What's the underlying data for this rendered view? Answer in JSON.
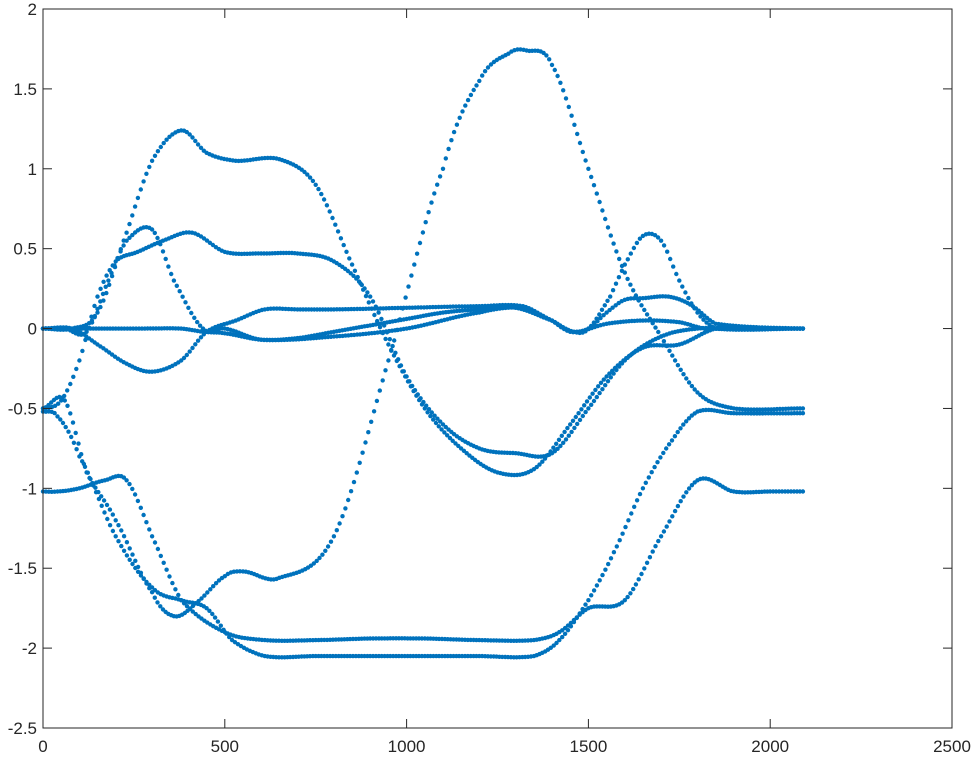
{
  "chart_data": {
    "type": "scatter",
    "title": "",
    "xlabel": "",
    "ylabel": "",
    "xlim": [
      0,
      2500
    ],
    "ylim": [
      -2.5,
      2
    ],
    "xticks": [
      0,
      500,
      1000,
      1500,
      2000,
      2500
    ],
    "yticks": [
      -2.5,
      -2,
      -1.5,
      -1,
      -0.5,
      0,
      0.5,
      1,
      1.5,
      2
    ],
    "xtick_labels": [
      "0",
      "500",
      "1000",
      "1500",
      "2000",
      "2500"
    ],
    "ytick_labels": [
      "-2.5",
      "-2",
      "-1.5",
      "-1",
      "-0.5",
      "0",
      "0.5",
      "1",
      "1.5",
      "2"
    ],
    "grid": false,
    "marker_color": "#0072BD",
    "series": [
      {
        "x": [
          0,
          80,
          150,
          230,
          300,
          380,
          450,
          530,
          650,
          750,
          850,
          950,
          1050,
          1150,
          1250,
          1350,
          1450,
          1550,
          1650,
          1750,
          1850,
          1950,
          2090
        ],
        "y": [
          0,
          0,
          0.1,
          0.6,
          1.05,
          1.24,
          1.1,
          1.05,
          1.06,
          0.9,
          0.4,
          -0.1,
          -0.5,
          -0.75,
          -0.9,
          -0.88,
          -0.6,
          -0.3,
          -0.12,
          -0.1,
          0,
          0,
          0
        ]
      },
      {
        "x": [
          0,
          40,
          100,
          170,
          230,
          300,
          380,
          500,
          610,
          750,
          900,
          1050,
          1200,
          1350,
          1420,
          1500,
          1600,
          1700,
          1800,
          1900,
          2000,
          2090
        ],
        "y": [
          -1.02,
          -1.02,
          -1.0,
          -0.95,
          -0.95,
          -1.3,
          -1.7,
          -1.9,
          -1.95,
          -1.95,
          -1.94,
          -1.94,
          -1.95,
          -1.95,
          -1.9,
          -1.75,
          -1.7,
          -1.3,
          -0.95,
          -1.02,
          -1.02,
          -1.02
        ]
      },
      {
        "x": [
          0,
          40,
          100,
          200,
          300,
          380,
          450,
          520,
          610,
          750,
          900,
          1050,
          1200,
          1350,
          1420,
          1500,
          1570,
          1650,
          1730,
          1800,
          1900,
          2090
        ],
        "y": [
          -0.52,
          -0.55,
          -0.8,
          -1.3,
          -1.62,
          -1.7,
          -1.75,
          -1.95,
          -2.05,
          -2.05,
          -2.05,
          -2.05,
          -2.05,
          -2.05,
          -1.95,
          -1.7,
          -1.4,
          -1.0,
          -0.7,
          -0.52,
          -0.53,
          -0.53
        ]
      },
      {
        "x": [
          0,
          60,
          120,
          200,
          300,
          360,
          420,
          500,
          550,
          650,
          800,
          950,
          1100,
          1200,
          1280,
          1330,
          1400,
          1500,
          1600,
          1700,
          1800,
          1900,
          2090
        ],
        "y": [
          -0.5,
          -0.45,
          -0.9,
          -1.2,
          -1.65,
          -1.8,
          -1.72,
          -1.55,
          -1.52,
          -1.56,
          -1.3,
          -0.2,
          1.0,
          1.55,
          1.72,
          1.74,
          1.65,
          1.0,
          0.35,
          -0.05,
          -0.4,
          -0.5,
          -0.5
        ]
      },
      {
        "x": [
          0,
          50,
          100,
          150,
          200,
          260,
          330,
          410,
          500,
          600,
          700,
          800,
          900,
          1000,
          1100,
          1200,
          1300,
          1400,
          1500,
          1600,
          1700,
          1800,
          1900,
          2090
        ],
        "y": [
          -0.5,
          -0.45,
          -0.2,
          0.2,
          0.42,
          0.48,
          0.55,
          0.6,
          0.48,
          0.47,
          0.47,
          0.42,
          0.2,
          -0.3,
          -0.6,
          -0.75,
          -0.78,
          -0.78,
          -0.5,
          -0.2,
          -0.05,
          0,
          0,
          0
        ]
      },
      {
        "x": [
          0,
          60,
          120,
          180,
          230,
          300,
          360,
          440,
          500,
          600,
          800,
          1000,
          1200,
          1320,
          1400,
          1460,
          1500,
          1560,
          1600,
          1650,
          1700,
          1750,
          1800,
          1850,
          2090
        ],
        "y": [
          0,
          0,
          -0.02,
          0.3,
          0.55,
          0.62,
          0.3,
          0,
          0,
          -0.07,
          -0.05,
          0,
          0.1,
          0.13,
          0.05,
          -0.02,
          0,
          0.2,
          0.4,
          0.58,
          0.55,
          0.3,
          0.1,
          0,
          0
        ]
      },
      {
        "x": [
          0,
          80,
          150,
          230,
          300,
          380,
          450,
          530,
          610,
          700,
          800,
          1000,
          1200,
          1320,
          1400,
          1460,
          1550,
          1650,
          1750,
          1820,
          2090
        ],
        "y": [
          0,
          0,
          -0.1,
          -0.22,
          -0.27,
          -0.2,
          -0.02,
          0.05,
          0.12,
          0.12,
          0.12,
          0.13,
          0.14,
          0.14,
          0.05,
          -0.02,
          0.03,
          0.05,
          0.04,
          0,
          0
        ]
      },
      {
        "x": [
          0,
          100,
          200,
          280,
          380,
          440,
          500,
          600,
          700,
          800,
          900,
          1000,
          1100,
          1200,
          1300,
          1400,
          1450,
          1500,
          1550,
          1600,
          1650,
          1720,
          1780,
          1850,
          2090
        ],
        "y": [
          0,
          0,
          0,
          0,
          0,
          -0.02,
          -0.03,
          -0.07,
          -0.06,
          -0.02,
          0.02,
          0.06,
          0.1,
          0.12,
          0.13,
          0.05,
          -0.02,
          0,
          0.1,
          0.18,
          0.19,
          0.2,
          0.15,
          0.03,
          0
        ]
      }
    ]
  }
}
